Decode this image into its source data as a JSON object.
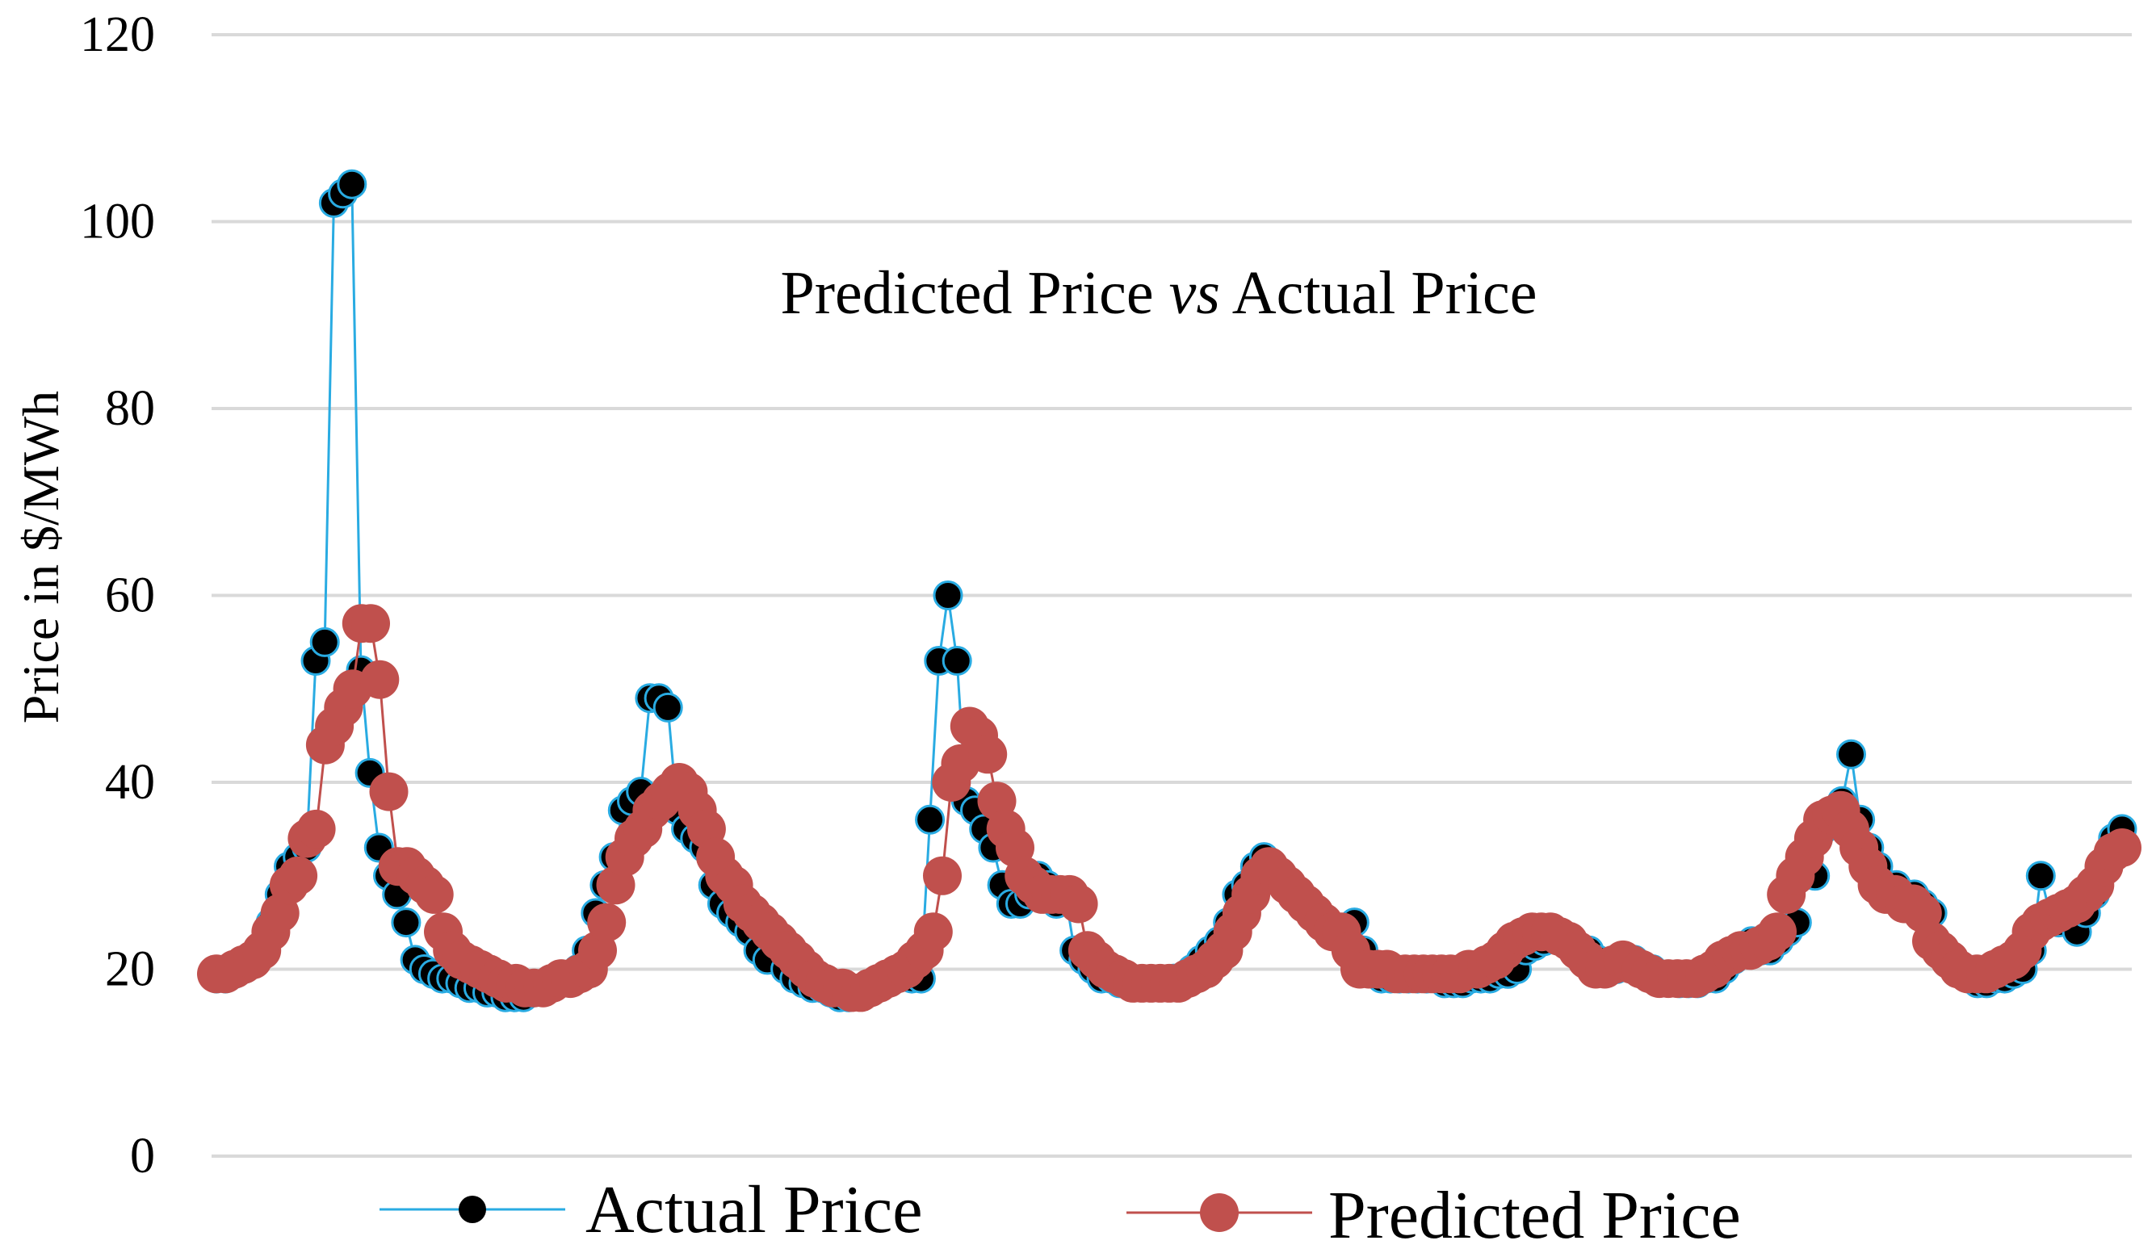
{
  "chart_data": {
    "type": "line",
    "title": {
      "prefix": "Predicted Price ",
      "vs": "vs",
      "suffix": " Actual Price"
    },
    "xlabel": "",
    "ylabel": "Price in $/MWh",
    "ylim": [
      0,
      120
    ],
    "yticks": [
      "0",
      "20",
      "40",
      "60",
      "80",
      "100",
      "120"
    ],
    "grid": true,
    "legend_position": "bottom",
    "series": [
      {
        "name": "Actual Price",
        "line_color": "#29abe2",
        "marker_color": "#000000",
        "values": [
          19,
          19,
          19.5,
          20,
          21,
          22,
          25,
          28,
          31,
          32,
          33,
          53,
          55,
          102,
          103,
          104,
          52,
          41,
          33,
          30,
          28,
          25,
          21,
          20,
          19.5,
          19,
          19,
          18.5,
          18,
          18,
          17.5,
          17.5,
          17,
          17,
          17,
          17.5,
          18,
          18,
          18.5,
          19,
          20,
          22,
          26,
          29,
          32,
          37,
          38,
          39,
          49,
          49,
          48,
          37,
          35,
          34,
          33,
          29,
          27,
          26,
          25,
          24,
          22,
          21,
          23,
          20,
          19,
          18.5,
          18,
          18,
          17.5,
          17,
          17,
          17.5,
          18,
          18.5,
          19,
          19.5,
          20,
          19,
          19,
          36,
          53,
          60,
          53,
          38,
          37,
          35,
          33,
          29,
          27,
          27,
          28,
          30,
          29,
          27,
          28,
          22,
          21,
          20,
          19,
          19,
          18.5,
          18.5,
          18.5,
          18.5,
          18.5,
          18.5,
          19,
          19,
          20,
          21,
          22,
          23,
          25,
          28,
          29,
          31,
          32,
          31,
          30,
          29,
          28,
          27,
          26,
          25,
          24,
          23,
          25,
          22,
          20,
          19,
          19,
          19,
          19,
          19,
          19,
          19,
          18.5,
          18.5,
          18.5,
          19,
          19,
          19,
          19.5,
          19.5,
          20,
          22,
          22.5,
          23,
          23.5,
          23,
          23,
          22,
          22,
          21,
          20,
          20,
          21,
          21,
          20,
          20,
          19,
          19,
          18.5,
          18.5,
          18.5,
          19,
          19,
          20,
          21,
          22,
          23,
          22,
          22,
          23,
          24,
          25,
          31,
          30,
          35,
          37,
          38,
          43,
          36,
          33,
          31,
          29,
          29,
          28,
          28,
          27,
          26,
          22,
          21,
          20,
          19,
          18.5,
          18.5,
          19,
          19,
          19.5,
          20,
          22,
          30,
          26,
          25,
          26,
          24,
          26,
          28,
          31,
          34,
          35
        ]
      },
      {
        "name": "Predicted Price",
        "line_color": "#c0504d",
        "marker_color": "#c0504d",
        "values": [
          19.5,
          19.5,
          20,
          20.5,
          21,
          22,
          24,
          26,
          29,
          30,
          34,
          35,
          44,
          46,
          48,
          50,
          57,
          57,
          51,
          39,
          31,
          31,
          30,
          29,
          28,
          24,
          22,
          21,
          20.5,
          20,
          19.5,
          19,
          18.5,
          18.5,
          18,
          18,
          18,
          18.5,
          19,
          19,
          19.5,
          20,
          22,
          25,
          29,
          32,
          34,
          35,
          37,
          38,
          39,
          40,
          39,
          37,
          35,
          32,
          30,
          29,
          27,
          26,
          25,
          24,
          23,
          22,
          21,
          20,
          19,
          18.5,
          18,
          18,
          17.5,
          17.5,
          18,
          18.5,
          19,
          19.5,
          20,
          21,
          22,
          24,
          30,
          40,
          42,
          46,
          45,
          43,
          38,
          35,
          33,
          30,
          29,
          28,
          28,
          28,
          28,
          27,
          22,
          21,
          20,
          19.5,
          19,
          18.5,
          18.5,
          18.5,
          18.5,
          18.5,
          18.5,
          19,
          19.5,
          20,
          21,
          22,
          24,
          26,
          28,
          30,
          31,
          30,
          29,
          28,
          27,
          26,
          25,
          24,
          24,
          22,
          20,
          20,
          20,
          20,
          19.5,
          19.5,
          19.5,
          19.5,
          19.5,
          19.5,
          19.5,
          19.5,
          20,
          20,
          20.5,
          21,
          22,
          23,
          23.5,
          24,
          24,
          24,
          23.5,
          23,
          22,
          21,
          20,
          20,
          20.5,
          21,
          20.5,
          20,
          19.5,
          19,
          19,
          19,
          19,
          19,
          19.5,
          20,
          21,
          21.5,
          22,
          22,
          22.5,
          23,
          24,
          28,
          30,
          32,
          34,
          36,
          36.5,
          37,
          35,
          33,
          31,
          29,
          28,
          28,
          27,
          27,
          26,
          23,
          22,
          21,
          20,
          19.5,
          19.5,
          19.5,
          20,
          20.5,
          21,
          22,
          24,
          25,
          25.5,
          26,
          26.5,
          27,
          28,
          29,
          31,
          32.5,
          33
        ]
      }
    ]
  }
}
